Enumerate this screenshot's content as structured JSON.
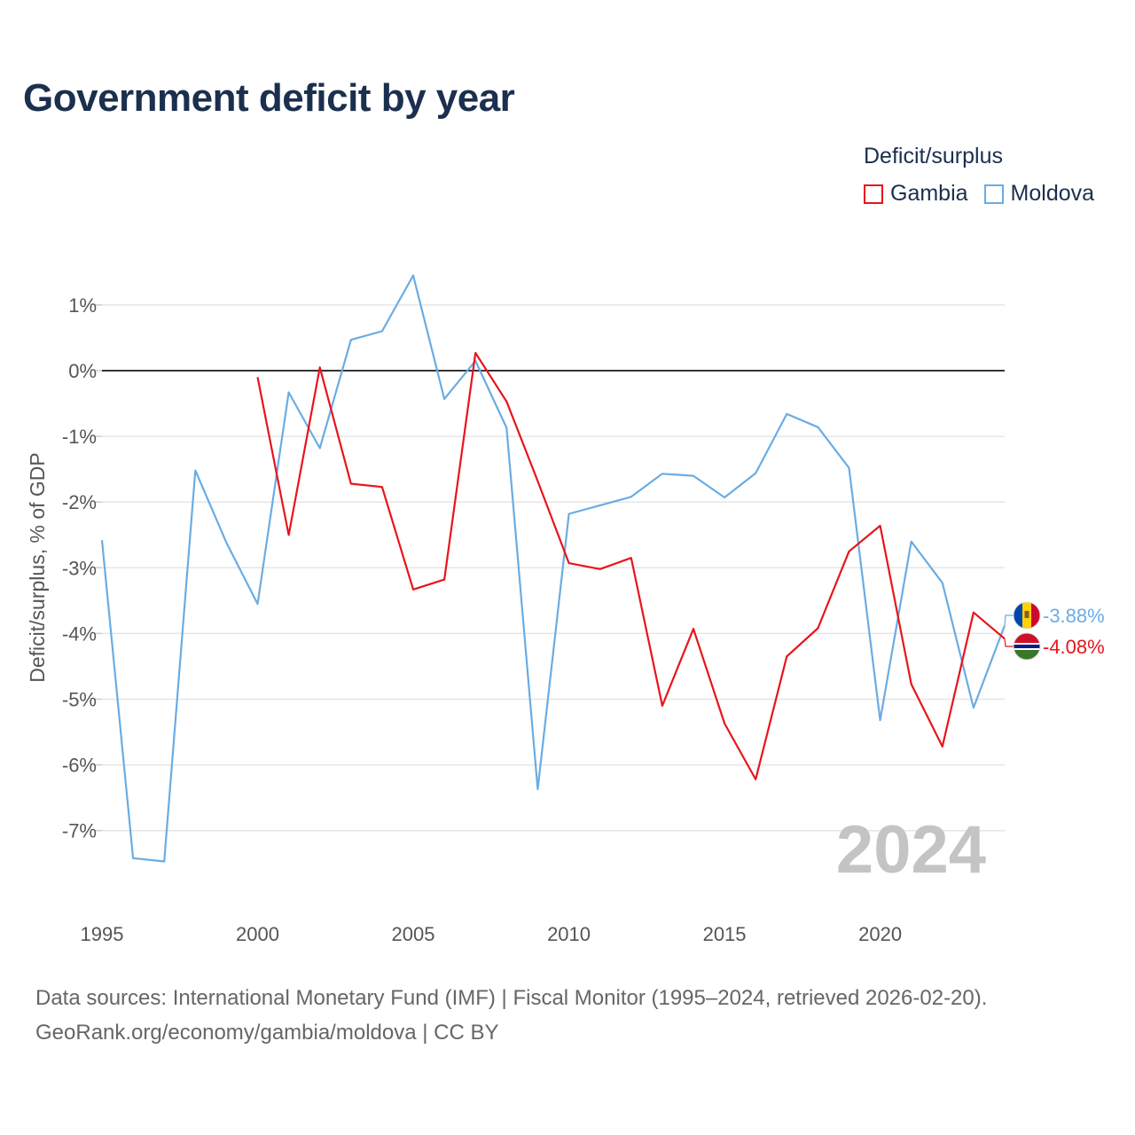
{
  "chart_data": {
    "type": "line",
    "title": "Government deficit by year",
    "ylabel": "Deficit/surplus, % of GDP",
    "xlabel": "",
    "legend_title": "Deficit/surplus",
    "legend_position": "top-right",
    "xlim": [
      1995,
      2024
    ],
    "ylim": [
      -8,
      1.5
    ],
    "x_ticks": [
      1995,
      2000,
      2005,
      2010,
      2015,
      2020
    ],
    "x_tick_labels": [
      "1995",
      "2000",
      "2005",
      "2010",
      "2015",
      "2020"
    ],
    "y_ticks": [
      1,
      0,
      -1,
      -2,
      -3,
      -4,
      -5,
      -6,
      -7
    ],
    "y_tick_labels": [
      "1%",
      "0%",
      "-1%",
      "-2%",
      "-3%",
      "-4%",
      "-5%",
      "-6%",
      "-7%"
    ],
    "year_watermark": "2024",
    "series": [
      {
        "name": "Gambia",
        "color": "#e8141b",
        "x": [
          2000,
          2001,
          2002,
          2003,
          2004,
          2005,
          2006,
          2007,
          2008,
          2009,
          2010,
          2011,
          2012,
          2013,
          2014,
          2015,
          2016,
          2017,
          2018,
          2019,
          2020,
          2021,
          2022,
          2023,
          2024
        ],
        "values": [
          -0.1,
          -2.5,
          0.05,
          -1.72,
          -1.77,
          -3.33,
          -3.18,
          0.27,
          -0.47,
          -1.68,
          -2.93,
          -3.02,
          -2.85,
          -5.1,
          -3.93,
          -5.37,
          -6.22,
          -4.35,
          -3.92,
          -2.75,
          -2.36,
          -4.77,
          -5.72,
          -3.68,
          -4.08
        ],
        "end_label": "-4.08%",
        "flag_icon": "gambia-flag-icon"
      },
      {
        "name": "Moldova",
        "color": "#6aace4",
        "x": [
          1995,
          1996,
          1997,
          1998,
          1999,
          2000,
          2001,
          2002,
          2003,
          2004,
          2005,
          2006,
          2007,
          2008,
          2009,
          2010,
          2011,
          2012,
          2013,
          2014,
          2015,
          2016,
          2017,
          2018,
          2019,
          2020,
          2021,
          2022,
          2023,
          2024
        ],
        "values": [
          -2.58,
          -7.42,
          -7.47,
          -1.52,
          -2.62,
          -3.55,
          -0.33,
          -1.18,
          0.47,
          0.6,
          1.45,
          -0.43,
          0.15,
          -0.87,
          -6.37,
          -2.18,
          -2.05,
          -1.92,
          -1.57,
          -1.6,
          -1.93,
          -1.56,
          -0.66,
          -0.86,
          -1.48,
          -5.32,
          -2.6,
          -3.23,
          -5.13,
          -3.88
        ],
        "end_label": "-3.88%",
        "flag_icon": "moldova-flag-icon"
      }
    ]
  },
  "footer": {
    "sources": "Data sources: International Monetary Fund (IMF) | Fiscal Monitor (1995–2024, retrieved 2026-02-20).",
    "credit": "GeoRank.org/economy/gambia/moldova | CC BY"
  }
}
